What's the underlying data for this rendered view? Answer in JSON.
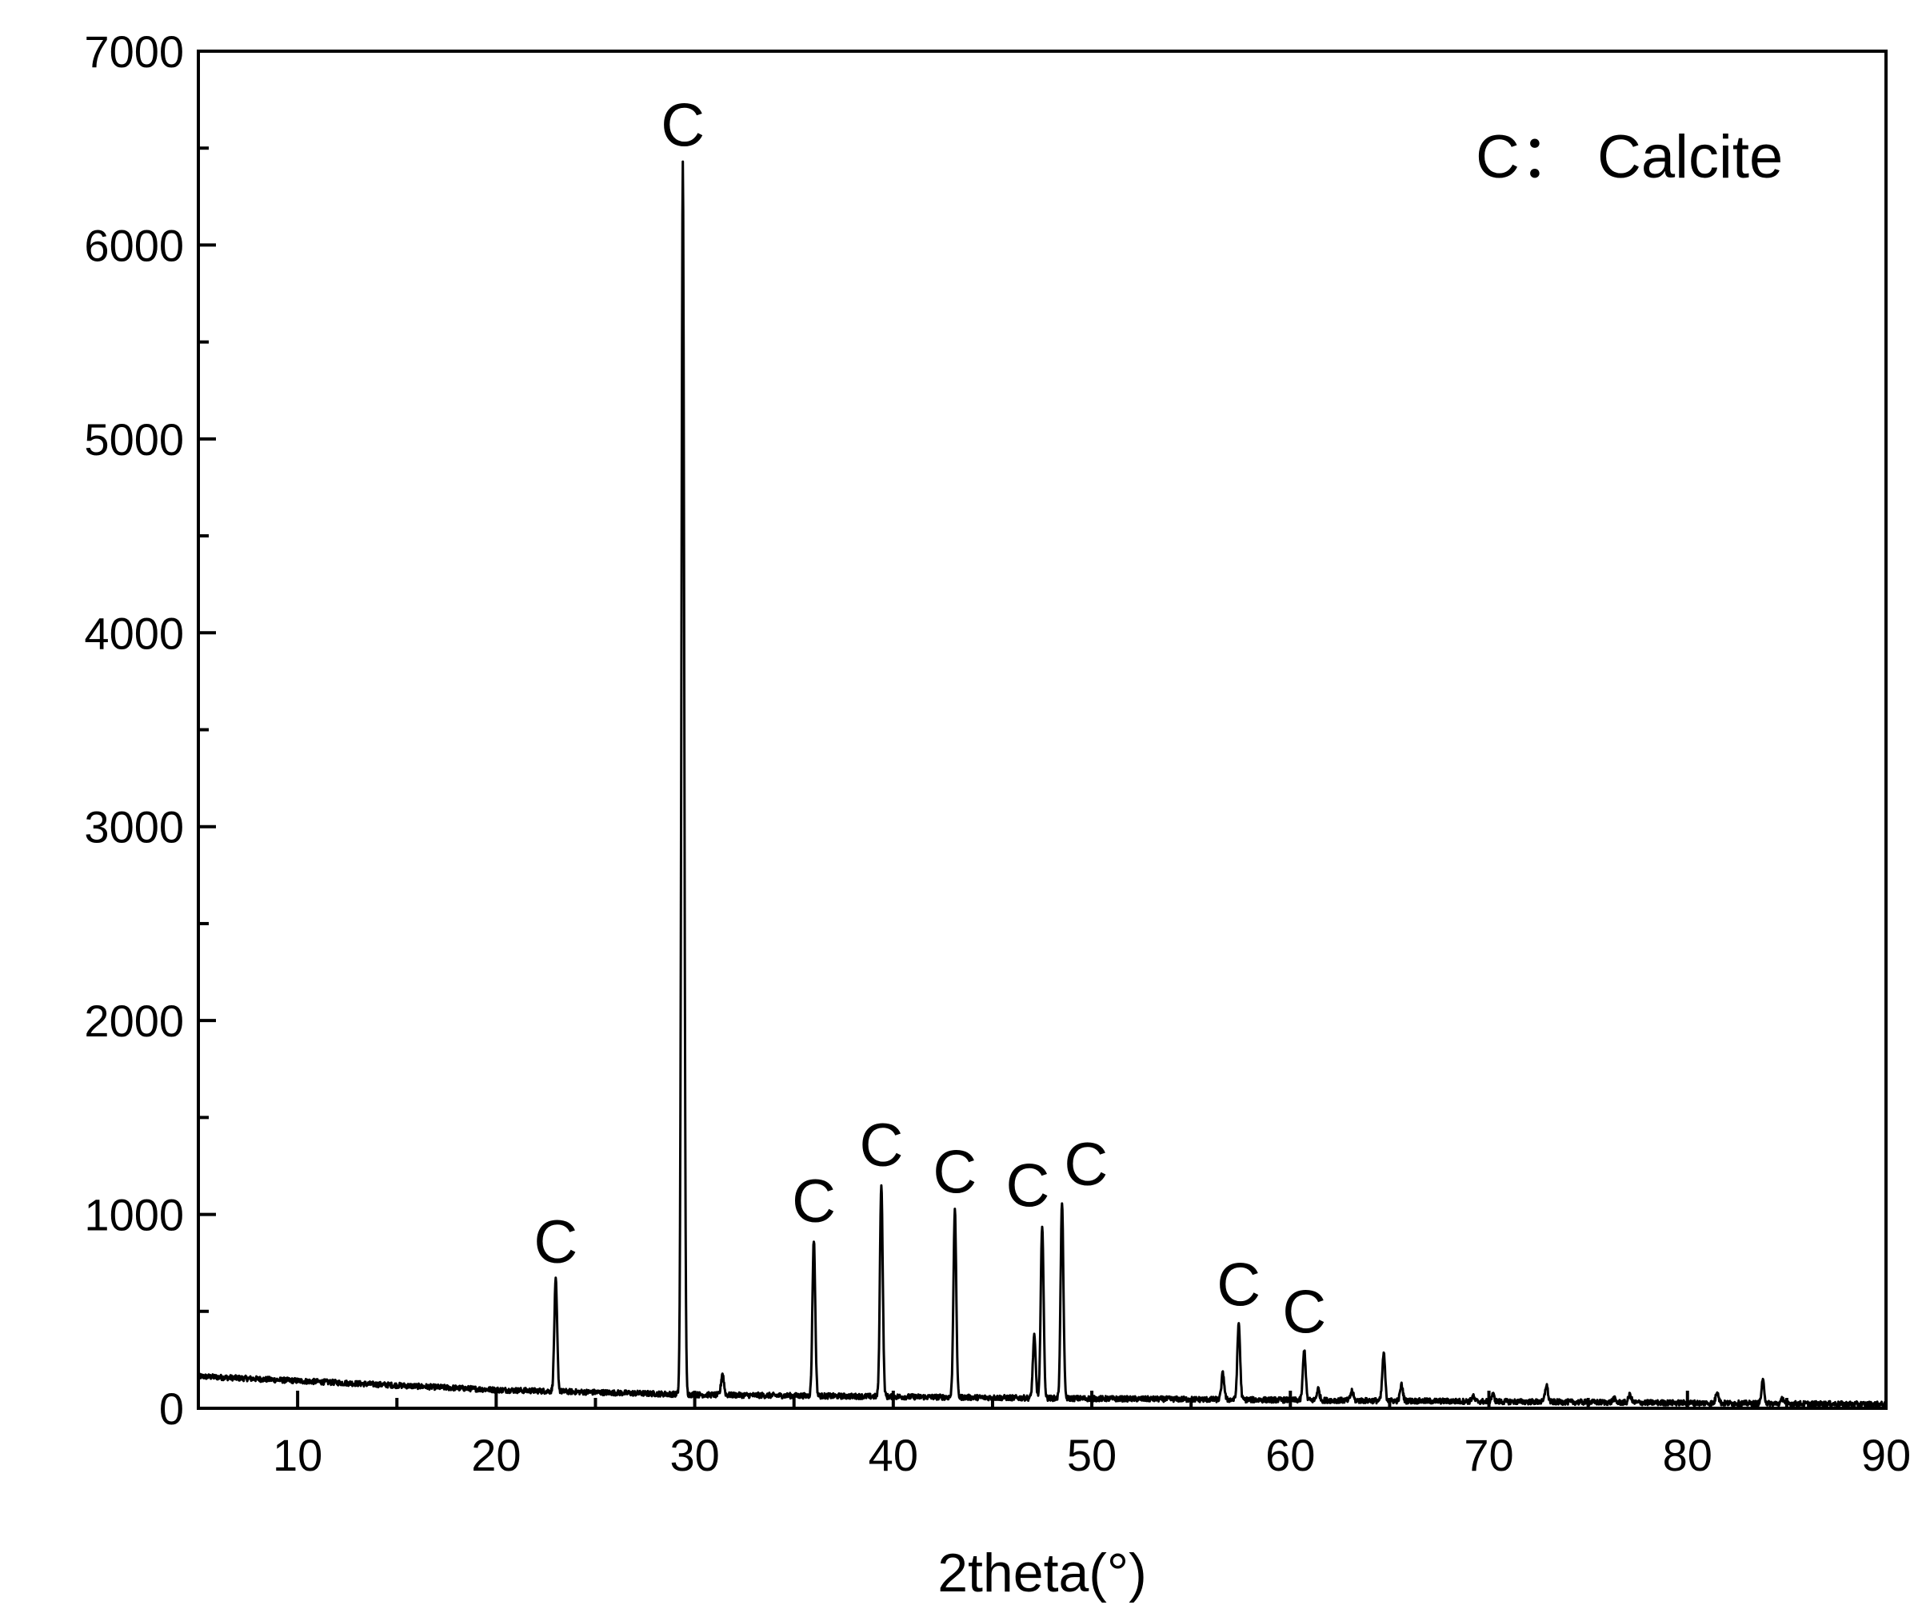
{
  "chart_data": {
    "type": "line",
    "title": "",
    "xlabel": "2theta(°)",
    "ylabel": "",
    "xlim": [
      5,
      90
    ],
    "ylim": [
      0,
      7000
    ],
    "x_ticks": [
      10,
      20,
      30,
      40,
      50,
      60,
      70,
      80,
      90
    ],
    "y_ticks": [
      0,
      1000,
      2000,
      3000,
      4000,
      5000,
      6000,
      7000
    ],
    "legend_text": "C： Calcite",
    "legend_position": "top-right",
    "grid": false,
    "line_color": "#000000",
    "peaks": [
      {
        "x": 23.0,
        "y": 660
      },
      {
        "x": 29.4,
        "y": 6420
      },
      {
        "x": 31.4,
        "y": 180
      },
      {
        "x": 36.0,
        "y": 870
      },
      {
        "x": 39.4,
        "y": 1160
      },
      {
        "x": 43.1,
        "y": 1020
      },
      {
        "x": 47.1,
        "y": 370
      },
      {
        "x": 47.5,
        "y": 950
      },
      {
        "x": 48.5,
        "y": 1060
      },
      {
        "x": 56.6,
        "y": 180
      },
      {
        "x": 57.4,
        "y": 440
      },
      {
        "x": 60.7,
        "y": 300
      },
      {
        "x": 61.4,
        "y": 100
      },
      {
        "x": 63.1,
        "y": 90
      },
      {
        "x": 64.7,
        "y": 280
      },
      {
        "x": 65.6,
        "y": 120
      },
      {
        "x": 69.2,
        "y": 60
      },
      {
        "x": 70.2,
        "y": 70
      },
      {
        "x": 72.9,
        "y": 120
      },
      {
        "x": 76.3,
        "y": 50
      },
      {
        "x": 77.1,
        "y": 70
      },
      {
        "x": 81.5,
        "y": 90
      },
      {
        "x": 83.8,
        "y": 140
      },
      {
        "x": 84.8,
        "y": 50
      }
    ],
    "annotations": [
      {
        "text": "C",
        "x": 23.0,
        "y": 660
      },
      {
        "text": "C",
        "x": 29.4,
        "y": 6420
      },
      {
        "text": "C",
        "x": 36.0,
        "y": 870
      },
      {
        "text": "C",
        "x": 39.4,
        "y": 1160
      },
      {
        "text": "C",
        "x": 43.1,
        "y": 1020
      },
      {
        "text": "C",
        "x": 47.5,
        "y": 950
      },
      {
        "text": "C",
        "x": 48.5,
        "y": 1060
      },
      {
        "text": "C",
        "x": 57.4,
        "y": 440
      },
      {
        "text": "C",
        "x": 60.7,
        "y": 300
      }
    ]
  }
}
